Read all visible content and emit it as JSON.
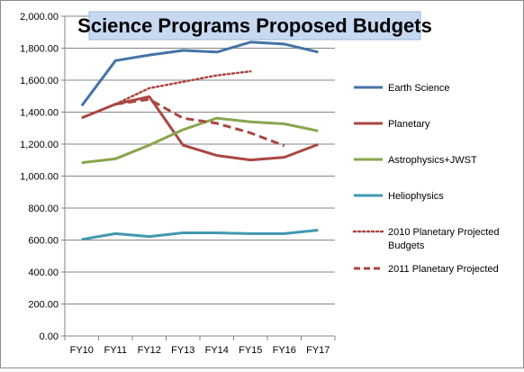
{
  "chart_data": {
    "type": "line",
    "title": "Science Programs Proposed Budgets",
    "xlabel": "",
    "ylabel": "",
    "categories": [
      "FY10",
      "FY11",
      "FY12",
      "FY13",
      "FY14",
      "FY15",
      "FY16",
      "FY17"
    ],
    "ylim": [
      0,
      2000
    ],
    "yticks": [
      "0.00",
      "200.00",
      "400.00",
      "600.00",
      "800.00",
      "1,000.00",
      "1,200.00",
      "1,400.00",
      "1,600.00",
      "1,800.00",
      "2,000.00"
    ],
    "grid": true,
    "legend_position": "right",
    "series": [
      {
        "name": "Earth Science",
        "color": "#4573a7",
        "dash": "solid",
        "values": [
          1440,
          1722,
          1757,
          1786,
          1776,
          1838,
          1826,
          1776
        ]
      },
      {
        "name": "Planetary",
        "color": "#aa4643",
        "dash": "solid",
        "values": [
          1364,
          1450,
          1497,
          1193,
          1129,
          1101,
          1118,
          1198
        ]
      },
      {
        "name": "Astrophysics+JWST",
        "color": "#89a54e",
        "dash": "solid",
        "values": [
          1084,
          1108,
          1194,
          1290,
          1362,
          1339,
          1327,
          1283
        ]
      },
      {
        "name": "Heliophysics",
        "color": "#4198af",
        "dash": "solid",
        "values": [
          604,
          640,
          622,
          645,
          645,
          640,
          640,
          662
        ]
      },
      {
        "name": "2010 Planetary Projected Budgets",
        "color": "#aa4643",
        "dash": "dotted",
        "values": [
          null,
          1450,
          1550,
          1590,
          1630,
          1655,
          null,
          null
        ]
      },
      {
        "name": "2011 Planetary Projected",
        "color": "#aa4643",
        "dash": "dashed",
        "values": [
          null,
          1450,
          1480,
          1362,
          1330,
          1270,
          1190,
          null
        ]
      }
    ]
  }
}
